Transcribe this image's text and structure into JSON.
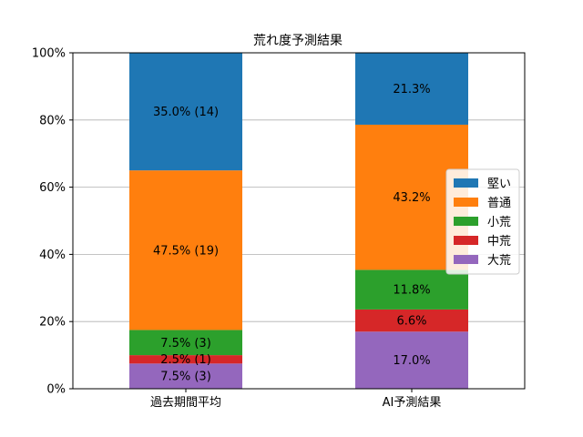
{
  "chart_data": {
    "type": "bar",
    "stacked": true,
    "title": "荒れ度予測結果",
    "xlabel": "",
    "ylabel": "",
    "ylim": [
      0,
      100
    ],
    "y_ticks": [
      "0%",
      "20%",
      "40%",
      "60%",
      "80%",
      "100%"
    ],
    "y_tick_values": [
      0,
      20,
      40,
      60,
      80,
      100
    ],
    "grid": "horizontal",
    "legend_position": "right",
    "categories": [
      "過去期間平均",
      "AI予測結果"
    ],
    "series": [
      {
        "name": "大荒",
        "color": "#9467bd",
        "values": [
          7.5,
          17.0
        ],
        "labels": [
          "7.5% (3)",
          "17.0%"
        ]
      },
      {
        "name": "中荒",
        "color": "#d62728",
        "values": [
          2.5,
          6.6
        ],
        "labels": [
          "2.5% (1)",
          "6.6%"
        ]
      },
      {
        "name": "小荒",
        "color": "#2ca02c",
        "values": [
          7.5,
          11.8
        ],
        "labels": [
          "7.5% (3)",
          "11.8%"
        ]
      },
      {
        "name": "普通",
        "color": "#ff7f0e",
        "values": [
          47.5,
          43.2
        ],
        "labels": [
          "47.5% (19)",
          "43.2%"
        ]
      },
      {
        "name": "堅い",
        "color": "#1f77b4",
        "values": [
          35.0,
          21.3
        ],
        "labels": [
          "35.0% (14)",
          "21.3%"
        ]
      }
    ],
    "legend_order": [
      "堅い",
      "普通",
      "小荒",
      "中荒",
      "大荒"
    ]
  }
}
